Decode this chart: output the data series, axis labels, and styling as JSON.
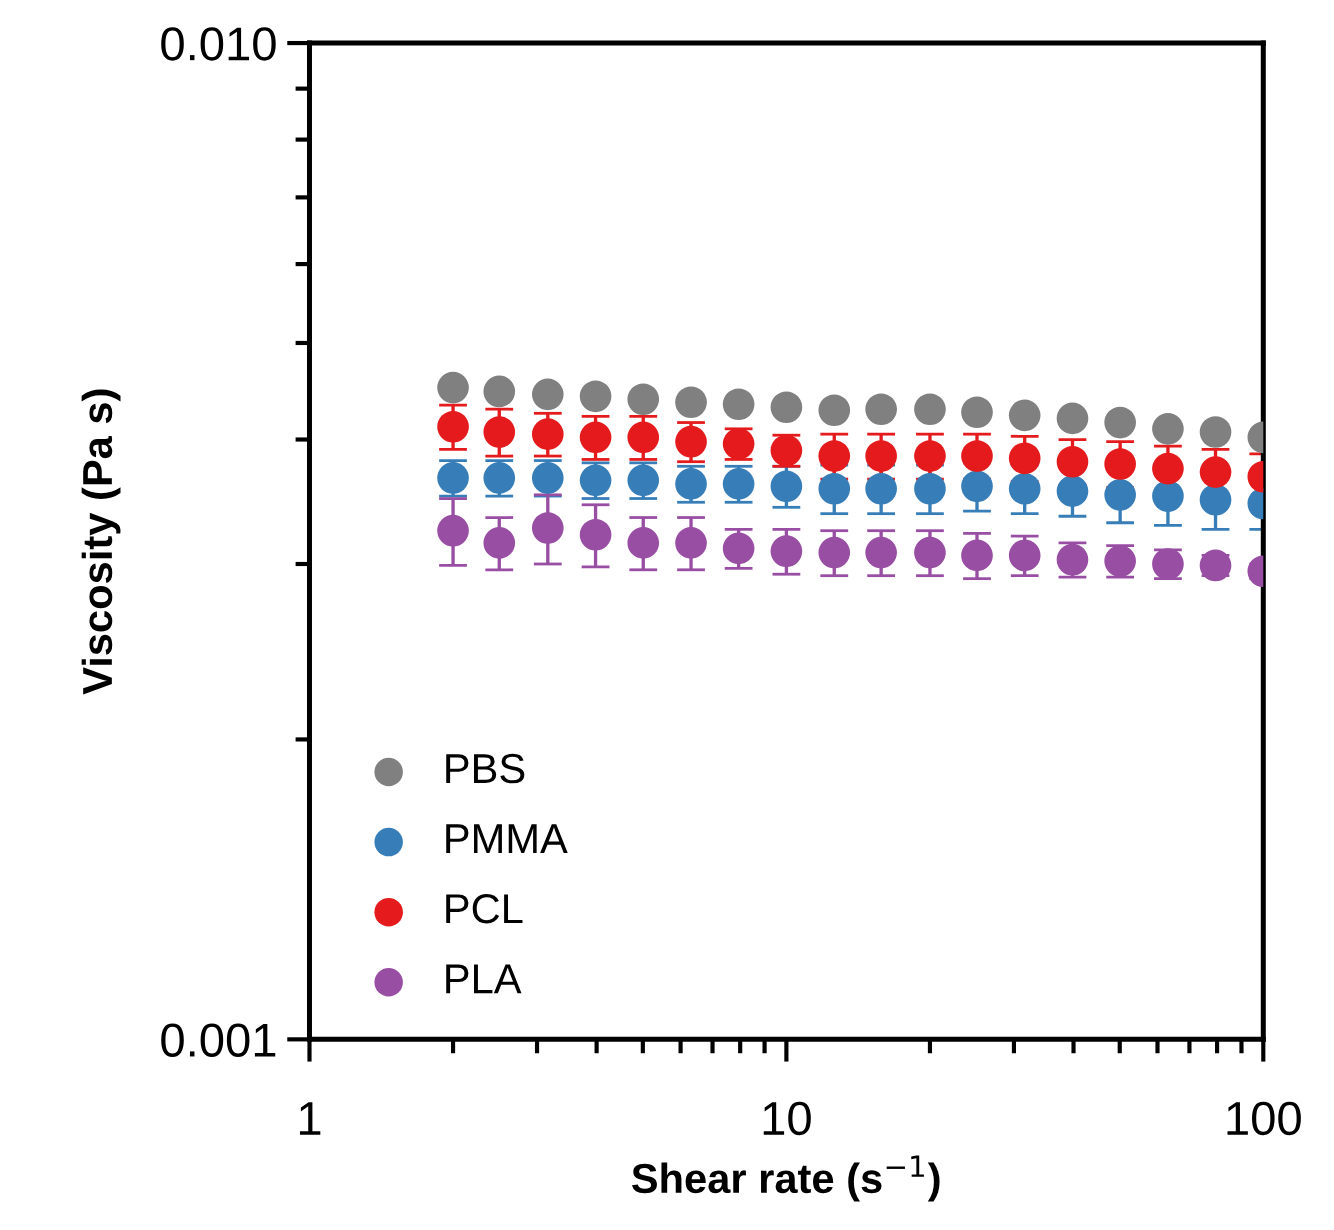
{
  "chart_data": {
    "type": "scatter",
    "xlabel": "Shear rate (s$^{−1}$)",
    "ylabel": "Viscosity (Pa s)",
    "log": "xy",
    "xlim": [
      1,
      100
    ],
    "ylim": [
      0.001,
      0.01
    ],
    "xticks": [
      1,
      10,
      100
    ],
    "yticks": [
      0.001,
      {
        "value": 0.01,
        "label": "0.010"
      }
    ],
    "grid": false,
    "legend": "bottom left",
    "marker": "circle",
    "x": [
      2,
      2.5,
      3.16,
      3.98,
      5.01,
      6.31,
      7.94,
      10,
      12.6,
      15.8,
      20,
      25.1,
      31.6,
      39.8,
      50.1,
      63.1,
      79.4,
      100
    ],
    "series": [
      {
        "name": "PBS",
        "color": "#808080",
        "values": [
          0.00451,
          0.00447,
          0.00444,
          0.00442,
          0.00439,
          0.00436,
          0.00434,
          0.00431,
          0.00428,
          0.00429,
          0.00429,
          0.00426,
          0.00423,
          0.0042,
          0.00416,
          0.0041,
          0.00407,
          0.00402
        ]
      },
      {
        "name": "PMMA",
        "color": "#377eb8",
        "values": [
          0.00366,
          0.00366,
          0.00366,
          0.00364,
          0.00364,
          0.00361,
          0.00361,
          0.00359,
          0.00357,
          0.00357,
          0.00357,
          0.00359,
          0.00357,
          0.00355,
          0.00352,
          0.00351,
          0.00348,
          0.00345
        ],
        "errors": [
          0.00015,
          0.00015,
          0.00015,
          0.00015,
          0.00015,
          0.00015,
          0.00015,
          0.00017,
          0.0002,
          0.0002,
          0.0002,
          0.0002,
          0.0002,
          0.0002,
          0.00022,
          0.00023,
          0.00023,
          0.0002
        ]
      },
      {
        "name": "PCL",
        "color": "#e41a1c",
        "values": [
          0.00412,
          0.00407,
          0.00405,
          0.00402,
          0.00402,
          0.00398,
          0.00396,
          0.0039,
          0.00385,
          0.00385,
          0.00385,
          0.00385,
          0.00383,
          0.0038,
          0.00378,
          0.00374,
          0.00371,
          0.00367
        ],
        "errors": [
          0.00021,
          0.00022,
          0.0002,
          0.0002,
          0.0002,
          0.00018,
          0.00014,
          0.00014,
          0.0002,
          0.0002,
          0.0002,
          0.0002,
          0.0002,
          0.0002,
          0.0002,
          0.0002,
          0.0002,
          0.0002
        ]
      },
      {
        "name": "PLA",
        "color": "#984ea3",
        "values": [
          0.00324,
          0.00315,
          0.00326,
          0.00321,
          0.00315,
          0.00315,
          0.00311,
          0.00309,
          0.00308,
          0.00308,
          0.00308,
          0.00306,
          0.00306,
          0.00303,
          0.00302,
          0.003,
          0.00299,
          0.00295
        ],
        "errors": [
          0.00025,
          0.00019,
          0.00026,
          0.00023,
          0.00019,
          0.00019,
          0.00014,
          0.00016,
          0.00016,
          0.00016,
          0.00016,
          0.00016,
          0.00014,
          0.00012,
          0.00011,
          0.0001,
          7e-05,
          5e-05
        ]
      }
    ]
  }
}
